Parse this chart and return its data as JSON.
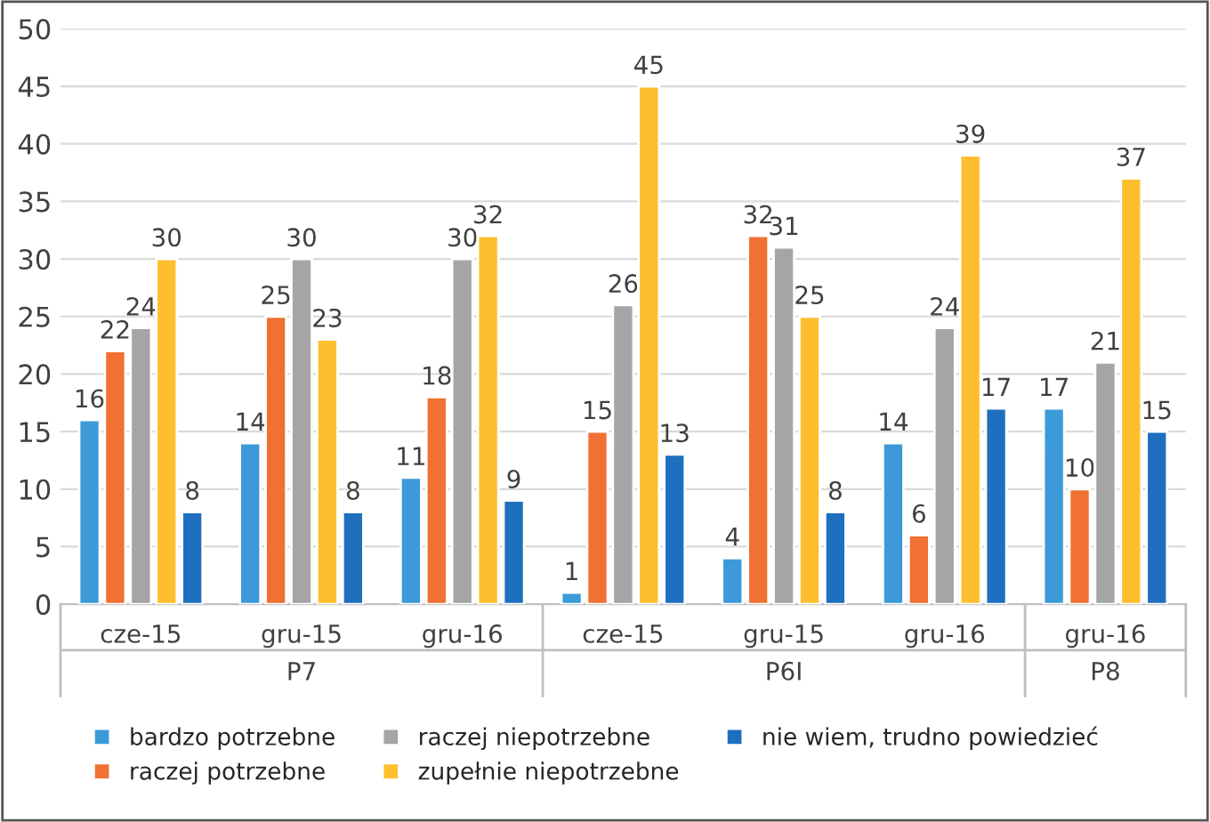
{
  "chart_data": {
    "type": "bar",
    "categories": [
      "cze-15",
      "gru-15",
      "gru-16",
      "cze-15",
      "gru-15",
      "gru-16",
      "gru-16"
    ],
    "annotations": [
      "P7",
      "P6I",
      "P8"
    ],
    "series": [
      {
        "name": "bardzo potrzebne",
        "color": "#3c9ad8",
        "values": [
          16,
          14,
          11,
          1,
          4,
          14,
          17
        ]
      },
      {
        "name": "raczej potrzebne",
        "color": "#f07132",
        "values": [
          22,
          25,
          18,
          15,
          32,
          6,
          10
        ]
      },
      {
        "name": "raczej niepotrzebne",
        "color": "#a5a5a5",
        "values": [
          24,
          30,
          30,
          26,
          31,
          24,
          21
        ]
      },
      {
        "name": "zupełnie niepotrzebne",
        "color": "#fdbf2d",
        "values": [
          30,
          23,
          32,
          45,
          25,
          39,
          37
        ]
      },
      {
        "name": "nie wiem, trudno powiedzieć",
        "color": "#1f6fbf",
        "values": [
          8,
          8,
          9,
          13,
          8,
          17,
          15
        ]
      }
    ],
    "ylim": [
      0,
      50
    ],
    "yticks": [
      0,
      5,
      10,
      15,
      20,
      25,
      30,
      35,
      40,
      45,
      50
    ],
    "grid": "y",
    "legend": "bottom",
    "data_labels": true
  }
}
